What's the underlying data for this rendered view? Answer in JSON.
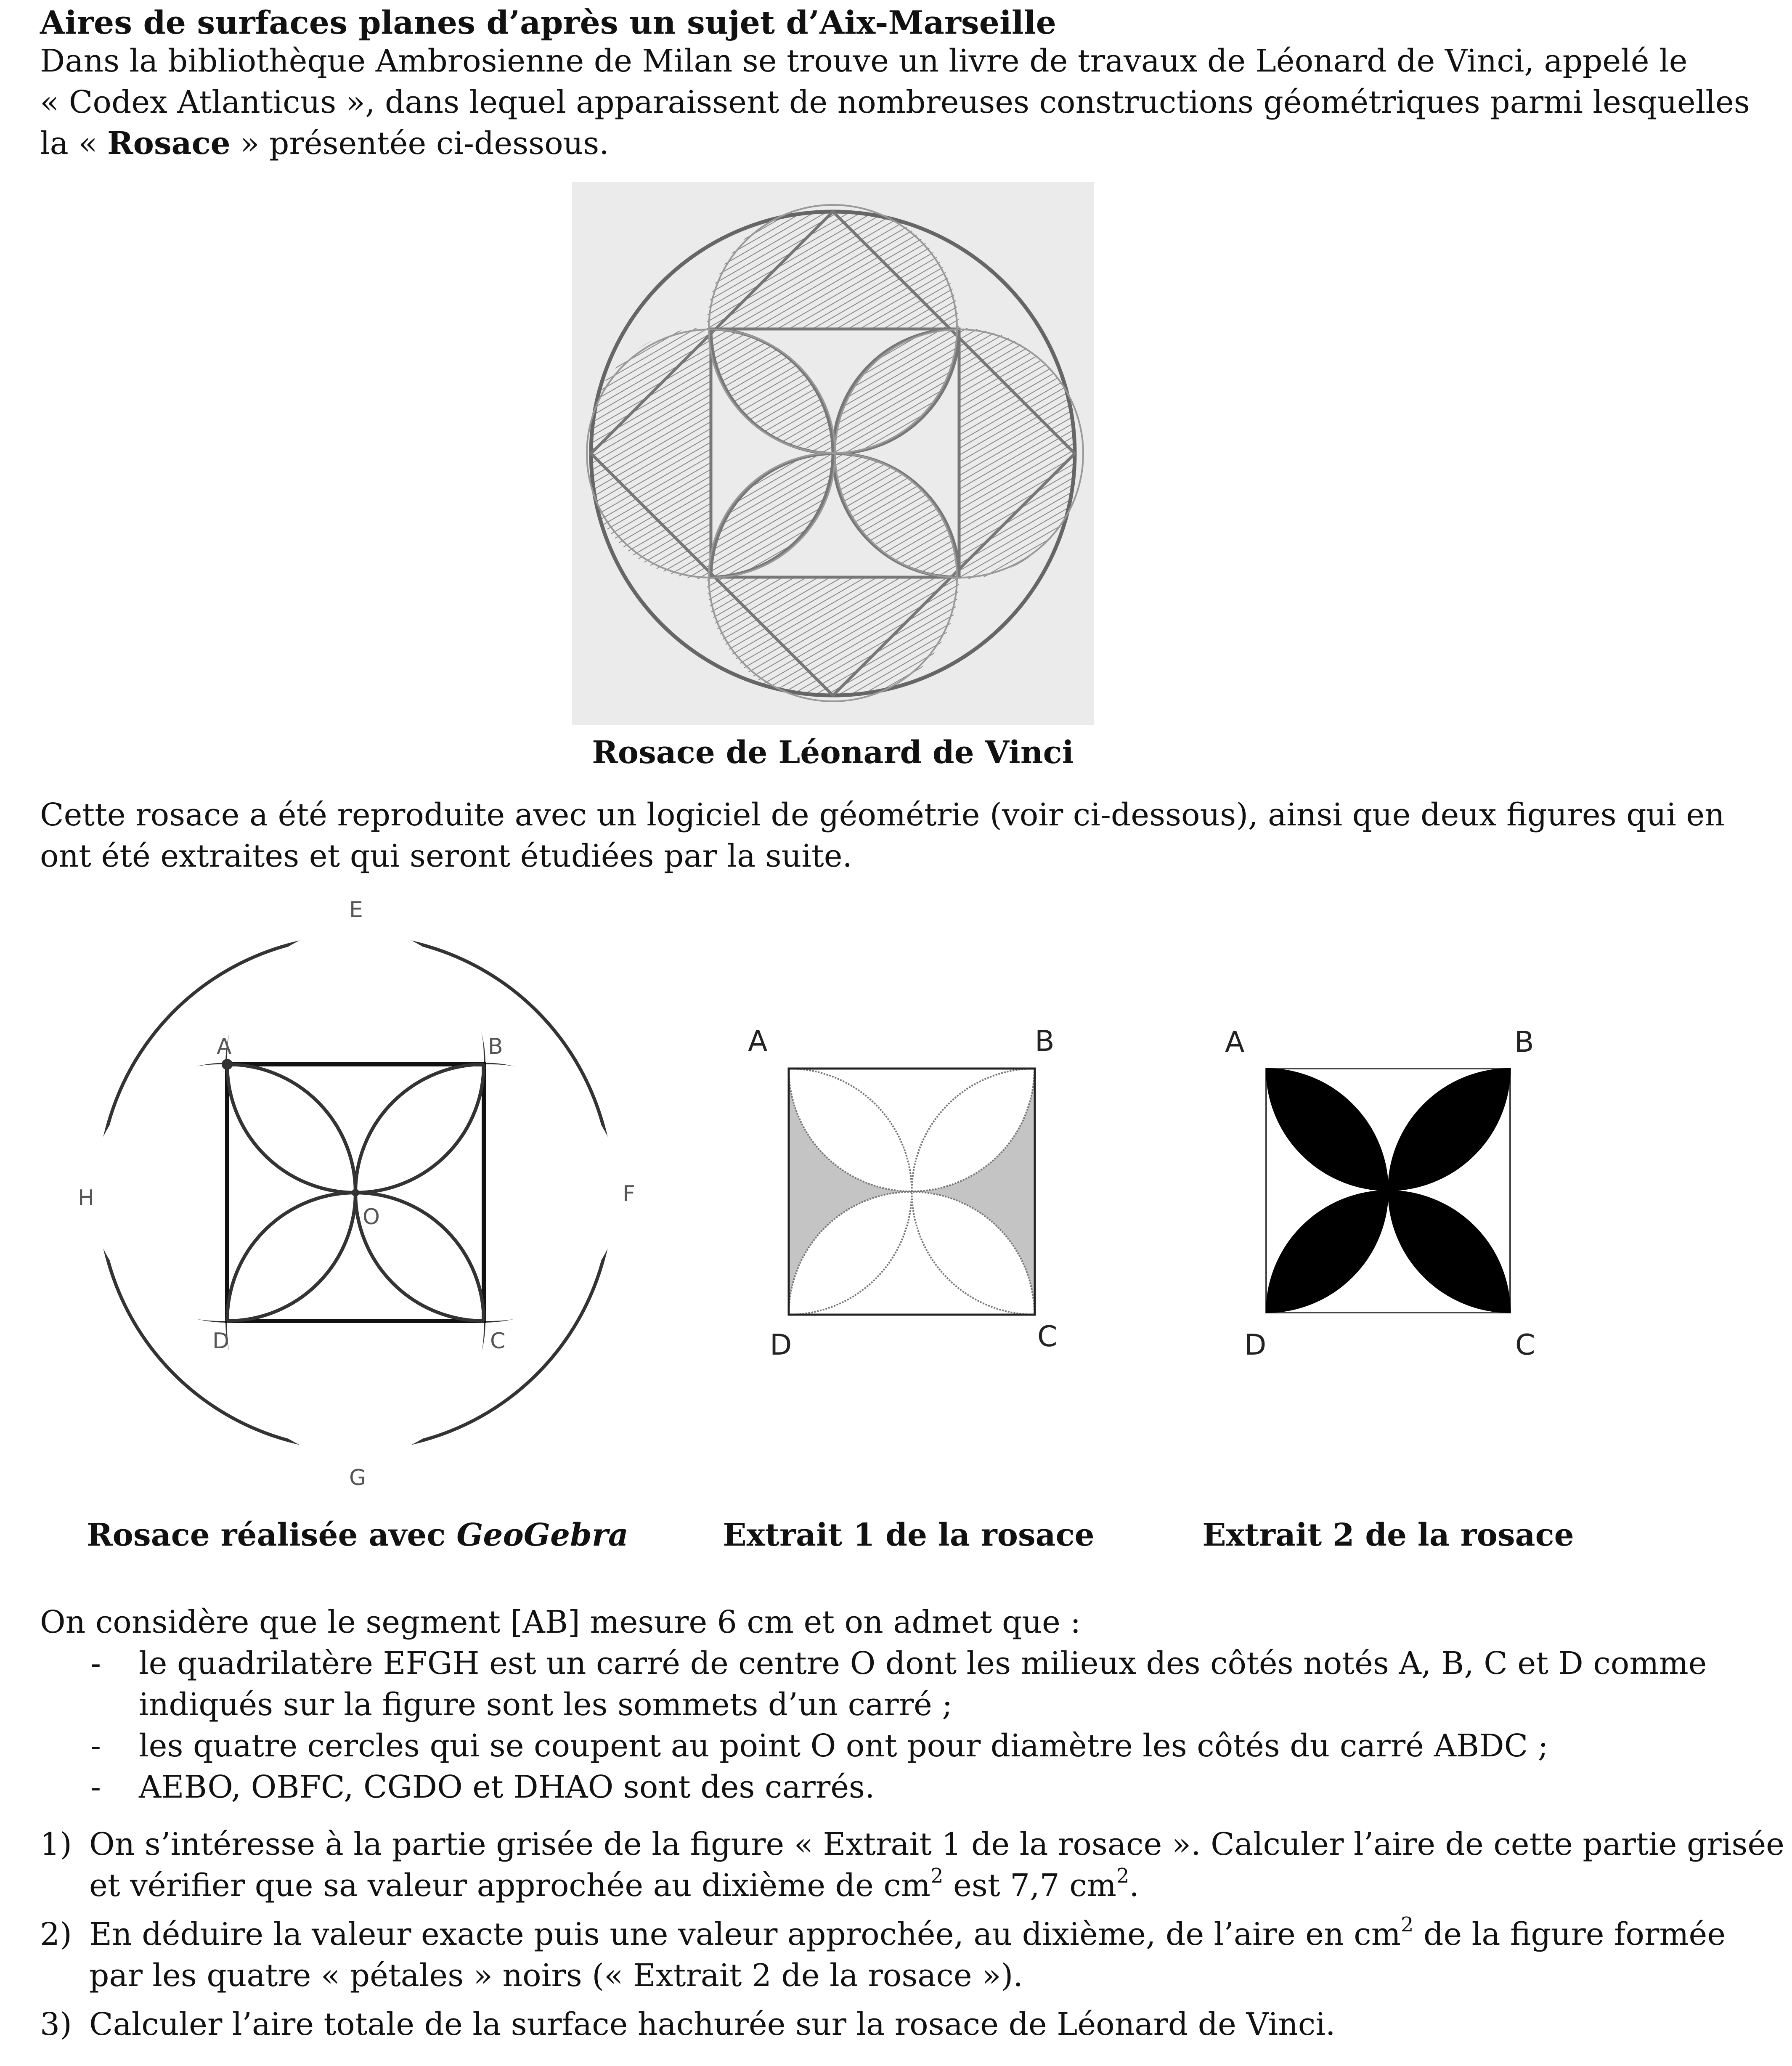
{
  "title": "Aires de surfaces planes d’après un sujet d’Aix-Marseille",
  "intro": {
    "line1": "Dans la bibliothèque Ambrosienne de Milan se trouve un livre de travaux de Léonard de Vinci, appelé le",
    "line2": "« Codex Atlanticus », dans lequel apparaissent de nombreuses constructions géométriques parmi lesquelles",
    "line3_before": "la « ",
    "line3_bold": "Rosace",
    "line3_after": " » présentée ci-dessous."
  },
  "photo_caption": "Rosace de Léonard de Vinci",
  "paragraph2": {
    "line1": "Cette rosace a été reproduite avec un logiciel de géométrie (voir ci-dessous), ainsi que deux figures qui en",
    "line2": "ont été extraites et qui seront étudiées par la suite."
  },
  "figure_labels": {
    "A": "A",
    "B": "B",
    "C": "C",
    "D": "D",
    "E": "E",
    "F": "F",
    "G": "G",
    "H": "H",
    "O": "O"
  },
  "captions": {
    "fig1_before": "Rosace réalisée avec ",
    "fig1_italic": "GeoGebra",
    "fig2": "Extrait 1 de la rosace",
    "fig3": "Extrait 2 de la rosace"
  },
  "considere": "On considère que le segment [AB] mesure 6 cm et on admet que :",
  "bullets": [
    {
      "dash": "-",
      "line1": "le quadrilatère EFGH est un carré de centre O dont les milieux des côtés notés A, B, C et D comme",
      "line2": "indiqués sur la figure sont les sommets d’un carré ;"
    },
    {
      "dash": "-",
      "line1": "les quatre cercles qui se coupent au point O ont pour diamètre les côtés du carré ABDC ;"
    },
    {
      "dash": "-",
      "line1": "AEBO, OBFC, CGDO et DHAO sont des carrés."
    }
  ],
  "questions": [
    {
      "num": "1)",
      "line1": "On s’intéresse à la partie grisée de la figure « Extrait 1 de la rosace ». Calculer l’aire de cette partie grisée",
      "line2_a": "et vérifier que sa valeur approchée au dixième de cm",
      "sup1": "2",
      "line2_b": " est 7,7 cm",
      "sup2": "2",
      "line2_c": "."
    },
    {
      "num": "2)",
      "line1_a": "En déduire la valeur exacte puis une valeur approchée, au dixième, de l’aire en cm",
      "sup": "2",
      "line1_b": " de la figure formée",
      "line2": "par les quatre « pétales » noirs (« Extrait 2 de la rosace »)."
    },
    {
      "num": "3)",
      "line1": "Calculer l’aire totale de la surface hachurée sur la rosace de Léonard de Vinci."
    }
  ],
  "colors": {
    "text": "#111111",
    "grey_fill": "#c4c4c4",
    "photo_bg": "#ebebeb",
    "petal": "#000000"
  }
}
